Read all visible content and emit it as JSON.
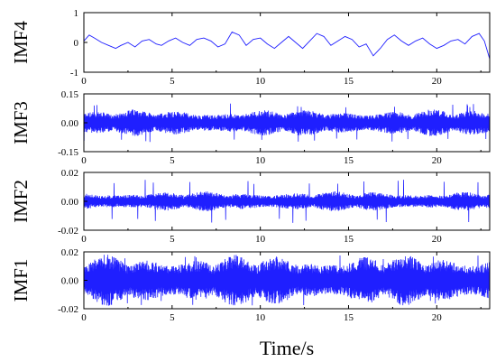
{
  "chart_data": {
    "type": "line",
    "xlabel": "Time/s",
    "x_ticks": [
      0,
      5,
      10,
      15,
      20
    ],
    "xlim": [
      0,
      23
    ],
    "line_color": "#1f1fff",
    "panels": [
      {
        "name": "IMF4",
        "ylabel": "IMF4",
        "ylim": [
          -1,
          1
        ],
        "y_ticks": [
          1,
          0,
          -1
        ],
        "y_tick_labels": [
          "1",
          "0",
          "-1"
        ],
        "signal": "low-frequency wave",
        "x": [
          0,
          0.3,
          0.6,
          1.0,
          1.4,
          1.8,
          2.1,
          2.5,
          2.9,
          3.3,
          3.7,
          4.1,
          4.4,
          4.8,
          5.2,
          5.6,
          6.0,
          6.4,
          6.8,
          7.2,
          7.6,
          8.0,
          8.4,
          8.8,
          9.2,
          9.6,
          10.0,
          10.4,
          10.8,
          11.2,
          11.6,
          12.0,
          12.4,
          12.8,
          13.2,
          13.6,
          14.0,
          14.4,
          14.8,
          15.2,
          15.6,
          16.0,
          16.4,
          16.8,
          17.2,
          17.6,
          18.0,
          18.4,
          18.8,
          19.2,
          19.6,
          20.0,
          20.4,
          20.8,
          21.2,
          21.6,
          22.0,
          22.4,
          22.7,
          23.0
        ],
        "y": [
          0.05,
          0.25,
          0.15,
          0.0,
          -0.1,
          -0.2,
          -0.1,
          0.0,
          -0.15,
          0.05,
          0.1,
          -0.05,
          -0.1,
          0.05,
          0.15,
          0.0,
          -0.1,
          0.1,
          0.15,
          0.05,
          -0.15,
          -0.05,
          0.35,
          0.25,
          -0.1,
          0.1,
          0.15,
          -0.05,
          -0.2,
          0.0,
          0.2,
          0.0,
          -0.2,
          0.05,
          0.3,
          0.2,
          -0.1,
          0.05,
          0.2,
          0.1,
          -0.15,
          -0.05,
          -0.45,
          -0.2,
          0.1,
          0.25,
          0.05,
          -0.1,
          0.05,
          0.15,
          -0.05,
          -0.2,
          -0.1,
          0.05,
          0.1,
          -0.05,
          0.2,
          0.3,
          0.05,
          -0.55
        ]
      },
      {
        "name": "IMF3",
        "ylabel": "IMF3",
        "ylim": [
          -0.15,
          0.15
        ],
        "y_ticks": [
          0.15,
          0.0,
          -0.15
        ],
        "y_tick_labels": [
          "0.15",
          "0.00",
          "-0.15"
        ],
        "signal": "dense oscillation",
        "typical_amplitude": 0.05,
        "peak_amplitude": 0.1
      },
      {
        "name": "IMF2",
        "ylabel": "IMF2",
        "ylim": [
          -0.02,
          0.02
        ],
        "y_ticks": [
          0.02,
          0.0,
          -0.02
        ],
        "y_tick_labels": [
          "0.02",
          "0.00",
          "-0.02"
        ],
        "signal": "dense oscillation",
        "typical_amplitude": 0.005,
        "peak_amplitude": 0.015
      },
      {
        "name": "IMF1",
        "ylabel": "IMF1",
        "ylim": [
          -0.02,
          0.02
        ],
        "y_ticks": [
          0.02,
          0.0,
          -0.02
        ],
        "y_tick_labels": [
          "0.02",
          "0.00",
          "-0.02"
        ],
        "signal": "dense oscillation",
        "typical_amplitude": 0.013,
        "peak_amplitude": 0.018
      }
    ]
  }
}
